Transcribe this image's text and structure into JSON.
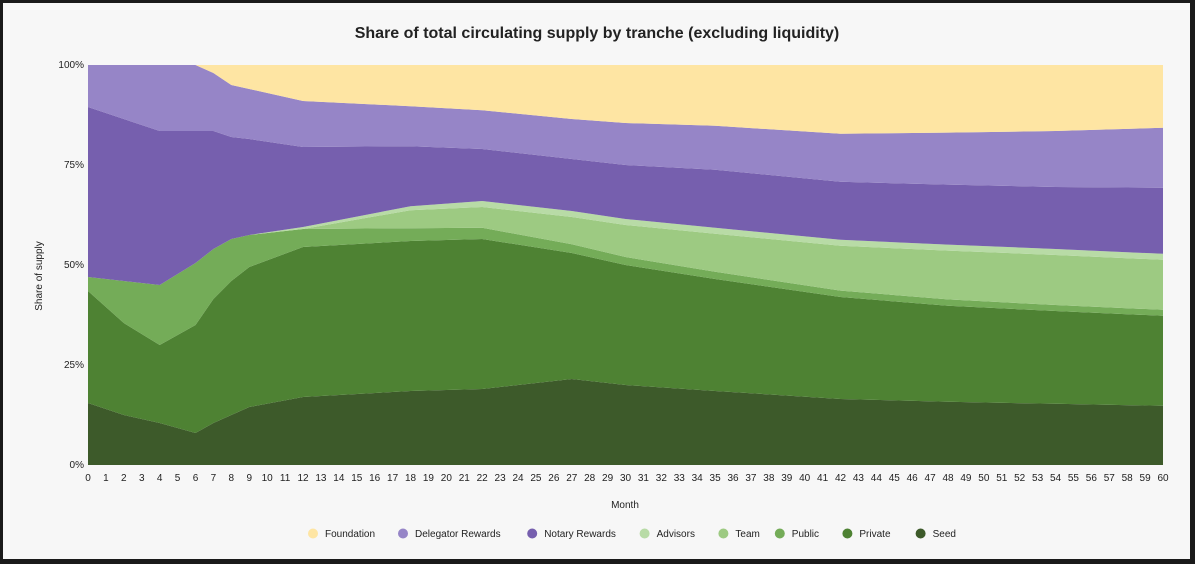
{
  "chart_data": {
    "type": "area",
    "stacked": true,
    "normalized": true,
    "title": "Share of total circulating supply by tranche (excluding liquidity)",
    "xlabel": "Month",
    "ylabel": "Share of supply",
    "ylim": [
      0,
      100
    ],
    "yticks": [
      "0%",
      "25%",
      "50%",
      "75%",
      "100%"
    ],
    "ytick_values": [
      0,
      25,
      50,
      75,
      100
    ],
    "xlim": [
      0,
      60
    ],
    "x": [
      0,
      2,
      4,
      6,
      7,
      8,
      9,
      12,
      18,
      22,
      27,
      30,
      35,
      42,
      48,
      54,
      60
    ],
    "grid": false,
    "legend_position": "bottom",
    "series": [
      {
        "name": "Seed",
        "color": "#3d5a2a",
        "values": [
          15.5,
          12.5,
          10.5,
          8,
          10.5,
          12.5,
          14.5,
          17,
          18.5,
          19,
          21.5,
          20,
          18.5,
          16.5,
          15.8,
          15.3,
          14.8
        ]
      },
      {
        "name": "Private",
        "color": "#4e8233",
        "values": [
          28,
          23,
          19.5,
          27,
          31,
          33.5,
          35,
          37.5,
          37.5,
          37.5,
          31.5,
          30,
          28,
          25.5,
          24,
          23.2,
          22.5
        ]
      },
      {
        "name": "Public",
        "color": "#74ac58",
        "values": [
          3.5,
          10.5,
          15,
          15.5,
          12.5,
          10.5,
          8,
          4.5,
          3.2,
          2.8,
          2.2,
          2,
          1.8,
          1.6,
          1.6,
          1.5,
          1.5
        ]
      },
      {
        "name": "Team",
        "color": "#9dca82",
        "values": [
          0,
          0,
          0,
          0,
          0,
          0,
          0,
          0,
          4.5,
          5.2,
          6.8,
          8,
          9.5,
          11.2,
          12.2,
          12.5,
          12.5
        ]
      },
      {
        "name": "Advisors",
        "color": "#b8dba6",
        "values": [
          0,
          0,
          0,
          0,
          0,
          0,
          0,
          0.5,
          1,
          1.5,
          1.5,
          1.5,
          1.5,
          1.5,
          1.5,
          1.5,
          1.5
        ]
      },
      {
        "name": "Notary Rewards",
        "color": "#765fae",
        "values": [
          42.5,
          40.5,
          38.5,
          33,
          29.5,
          25.5,
          24,
          20,
          15,
          13,
          13,
          13.5,
          14.5,
          14.5,
          15,
          15.5,
          16.5
        ]
      },
      {
        "name": "Delegator Rewards",
        "color": "#9685c7",
        "values": [
          10.5,
          13.5,
          16.5,
          16.5,
          14.5,
          13,
          12.5,
          11.5,
          10,
          9.7,
          10,
          10.5,
          11,
          12,
          13,
          14,
          15
        ]
      },
      {
        "name": "Foundation",
        "color": "#fee5a3",
        "values": [
          0,
          0,
          0,
          0,
          2,
          5,
          6,
          9,
          10.3,
          11.3,
          13.5,
          14.5,
          15.2,
          17.2,
          16.9,
          16.5,
          15.7
        ]
      }
    ],
    "legend_order": [
      "Foundation",
      "Delegator Rewards",
      "Notary Rewards",
      "Advisors",
      "Team",
      "Public",
      "Private",
      "Seed"
    ]
  }
}
